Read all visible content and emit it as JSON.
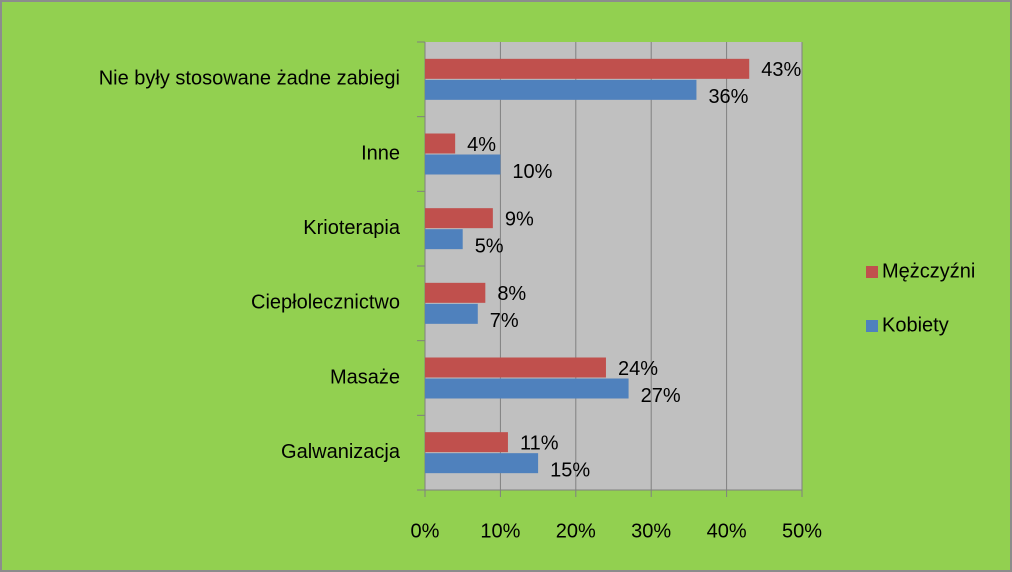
{
  "chart_data": {
    "type": "bar",
    "orientation": "horizontal",
    "categories": [
      "Nie były stosowane żadne zabiegi",
      "Inne",
      "Krioterapia",
      "Ciepłolecznictwo",
      "Masaże",
      "Galwanizacja"
    ],
    "series": [
      {
        "name": "Mężczyźni",
        "color": "#c0504d",
        "values": [
          43,
          4,
          9,
          8,
          24,
          11
        ],
        "value_labels": [
          "43%",
          "4%",
          "9%",
          "8%",
          "24%",
          "11%"
        ]
      },
      {
        "name": "Kobiety",
        "color": "#4f81bd",
        "values": [
          36,
          10,
          5,
          7,
          27,
          15
        ],
        "value_labels": [
          "36%",
          "10%",
          "5%",
          "7%",
          "27%",
          "15%"
        ]
      }
    ],
    "xlim": [
      0,
      50
    ],
    "xticks": [
      {
        "value": 0,
        "label": "0%"
      },
      {
        "value": 10,
        "label": "10%"
      },
      {
        "value": 20,
        "label": "20%"
      },
      {
        "value": 30,
        "label": "30%"
      },
      {
        "value": 40,
        "label": "40%"
      },
      {
        "value": 50,
        "label": "50%"
      }
    ],
    "grid": true,
    "legend": "right"
  }
}
